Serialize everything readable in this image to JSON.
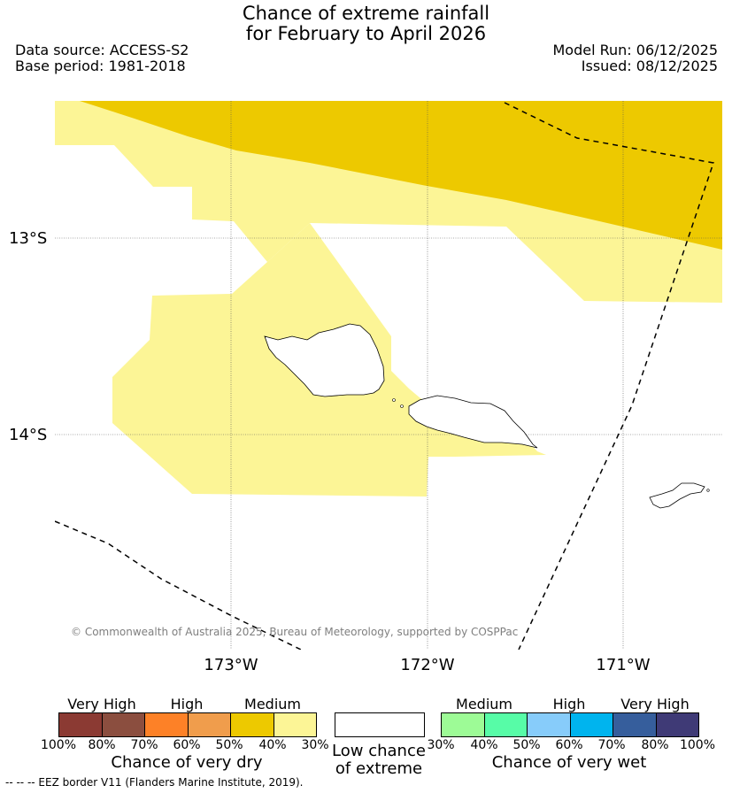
{
  "title": {
    "line1": "Chance of extreme rainfall",
    "line2": "for February to April 2026"
  },
  "meta": {
    "data_source": "Data source: ACCESS-S2",
    "base_period": "Base period: 1981-2018",
    "model_run": "Model Run: 06/12/2025",
    "issued": "Issued: 08/12/2025"
  },
  "map": {
    "lat_labels": [
      "13°S",
      "14°S"
    ],
    "lon_labels": [
      "173°W",
      "172°W",
      "171°W"
    ],
    "copyright": "© Commonwealth of Australia 2025, Bureau of Meteorology, supported by COSPPac",
    "colors": {
      "medium_dry_50_40": "#edc900",
      "medium_dry_40_30": "#fcf596",
      "background": "#ffffff"
    },
    "island_icon_names": [
      "savaii-island-icon",
      "upolu-island-icon",
      "tutuila-island-icon"
    ]
  },
  "legend": {
    "dry": {
      "categories": [
        "Very High",
        "High",
        "Medium"
      ],
      "ticks": [
        "100%",
        "80%",
        "70%",
        "60%",
        "50%",
        "40%",
        "30%"
      ],
      "colors": [
        "#8b3a33",
        "#8b4e3f",
        "#fd8127",
        "#f09d4c",
        "#edc900",
        "#fcf596"
      ],
      "title": "Chance of very dry"
    },
    "neutral": {
      "title_line1": "Low chance",
      "title_line2": "of extreme",
      "color": "#ffffff"
    },
    "wet": {
      "categories": [
        "Medium",
        "High",
        "Very High"
      ],
      "ticks": [
        "30%",
        "40%",
        "50%",
        "60%",
        "70%",
        "80%",
        "100%"
      ],
      "colors": [
        "#9dfb96",
        "#57fca7",
        "#87ccfa",
        "#00b4ee",
        "#365e9c",
        "#3f3a76"
      ],
      "title": "Chance of very wet"
    }
  },
  "footnote": "--  --  -- EEZ border V11 (Flanders Marine Institute, 2019)."
}
